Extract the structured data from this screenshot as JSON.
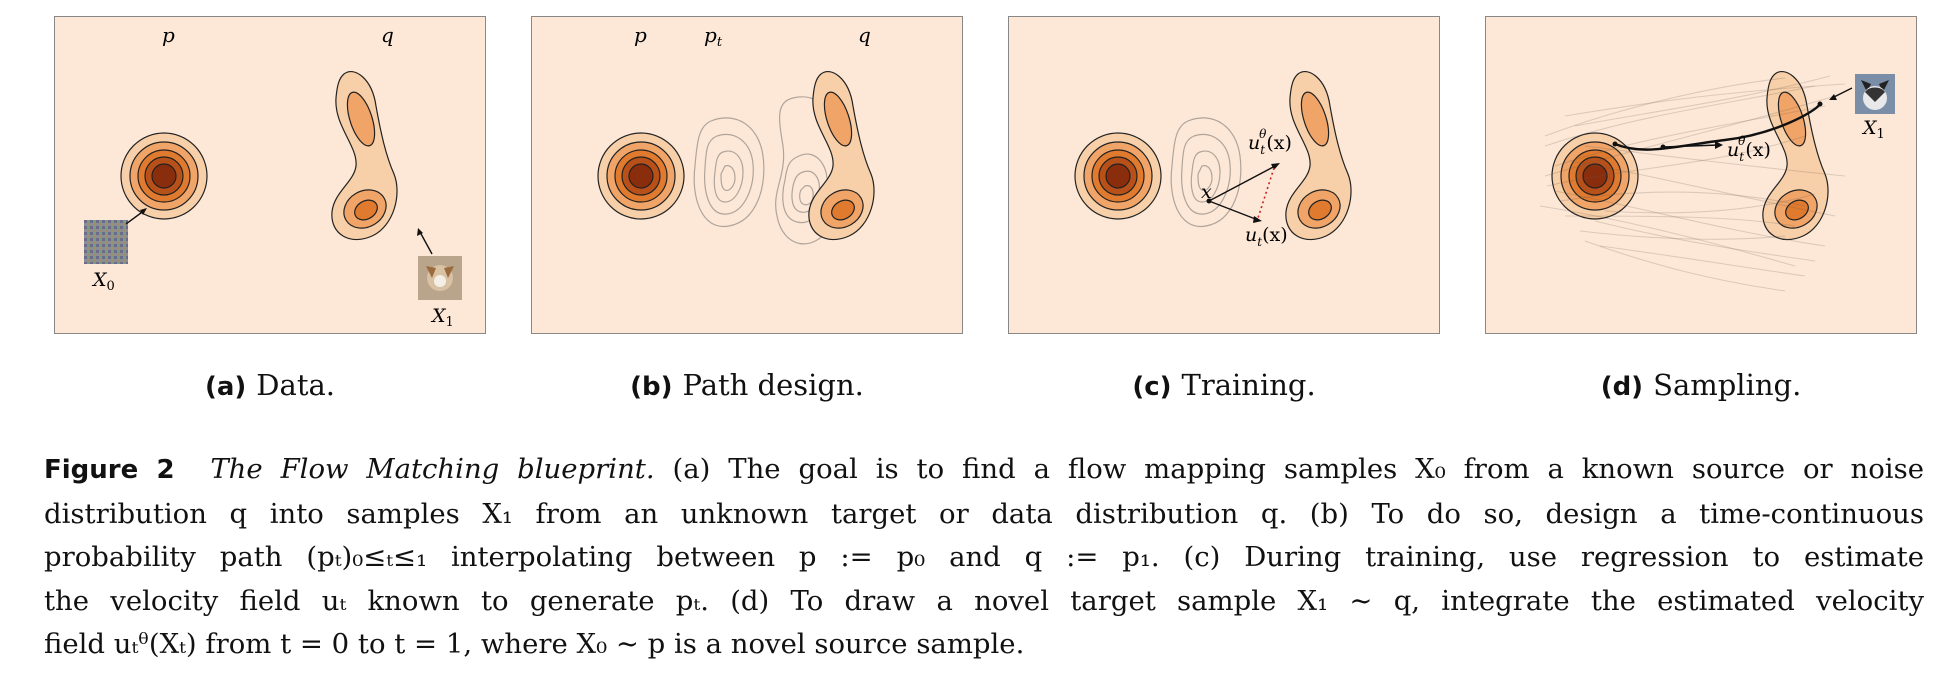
{
  "panels": [
    {
      "labels": {
        "p": "p",
        "q": "q",
        "x0": "X",
        "x0_sub": "0",
        "x1": "X",
        "x1_sub": "1"
      },
      "caption_tag": "(a)",
      "caption_text": "Data."
    },
    {
      "labels": {
        "p": "p",
        "pt": "p",
        "pt_sub": "t",
        "q": "q"
      },
      "caption_tag": "(b)",
      "caption_text": "Path design."
    },
    {
      "labels": {
        "x": "x",
        "u_theta": "u",
        "u_theta_sub": "t",
        "u_theta_sup": "θ",
        "u_theta_arg": "(x)",
        "u": "u",
        "u_sub": "t",
        "u_arg": "(x)"
      },
      "caption_tag": "(c)",
      "caption_text": "Training."
    },
    {
      "labels": {
        "u_theta": "u",
        "u_theta_sub": "t",
        "u_theta_sup": "θ",
        "u_theta_arg": "(x)",
        "x1": "X",
        "x1_sub": "1"
      },
      "caption_tag": "(d)",
      "caption_text": "Sampling."
    }
  ],
  "colors": {
    "panel_bg": "#fde8d8",
    "panel_border": "#888888",
    "density_outer": "#f7cfa8",
    "density_mid": "#f0a468",
    "density_inner": "#e07a2e",
    "density_core": "#8a2d0c",
    "path_contour": "#b0a49a",
    "error_line": "#cc2222"
  },
  "caption": {
    "figure_label": "Figure 2",
    "title": "The Flow Matching blueprint.",
    "lines": [
      "(a) The goal is to find a flow mapping samples X₀ from a known source or noise",
      "distribution q into samples X₁ from an unknown target or data distribution q. (b) To do so, design a time-continuous",
      "probability path (pₜ)₀≤ₜ≤₁ interpolating between p := p₀ and q := p₁. (c) During training, use regression to estimate",
      "the velocity field uₜ known to generate pₜ. (d) To draw a novel target sample X₁ ∼ q, integrate the estimated velocity",
      "field uₜᶿ(Xₜ) from t = 0 to t = 1, where X₀ ∼ p is a novel source sample."
    ]
  }
}
